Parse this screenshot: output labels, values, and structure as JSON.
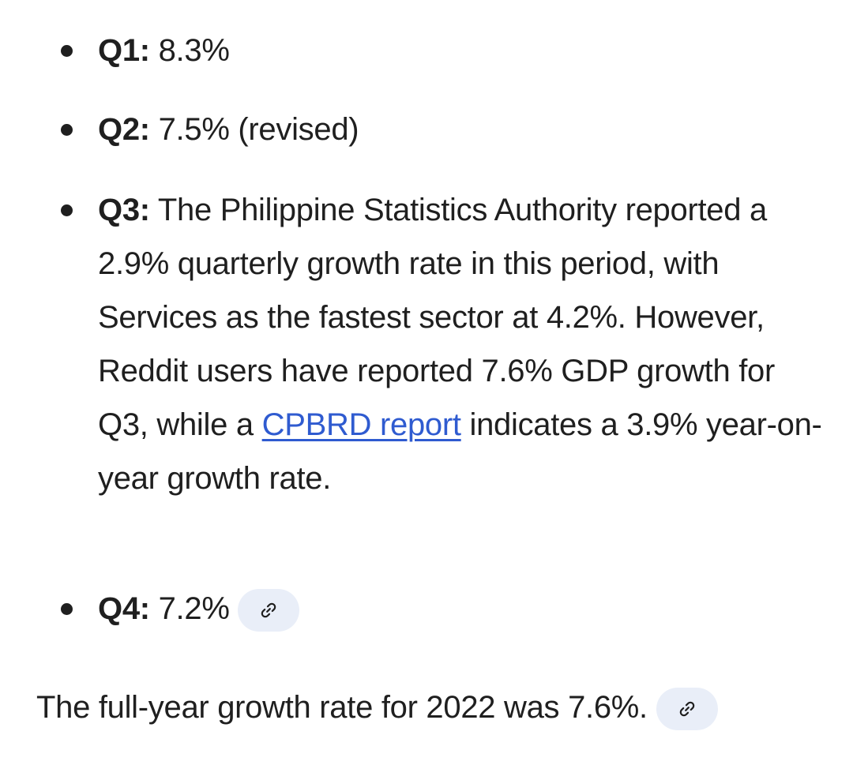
{
  "bullets": [
    {
      "label": "Q1:",
      "text": "8.3%"
    },
    {
      "label": "Q2:",
      "text": "7.5% (revised)"
    },
    {
      "label": "Q3:",
      "text_before": "The Philippine Statistics Authority reported a 2.9% quarterly growth rate in this period, with Services as the fastest sector at 4.2%. However, Reddit users have reported 7.6% GDP growth for Q3, while a",
      "link_text": "CPBRD report",
      "text_after": "indicates a 3.9% year-on-year growth rate."
    },
    {
      "label": "Q4:",
      "text": "7.2%"
    }
  ],
  "summary": {
    "text": "The full-year growth rate for 2022 was 7.6%."
  },
  "icons": {
    "source_chip": "link-icon"
  },
  "colors": {
    "text": "#1f1f1f",
    "link": "#2f5bd0",
    "chip_background": "#e9eef8"
  }
}
